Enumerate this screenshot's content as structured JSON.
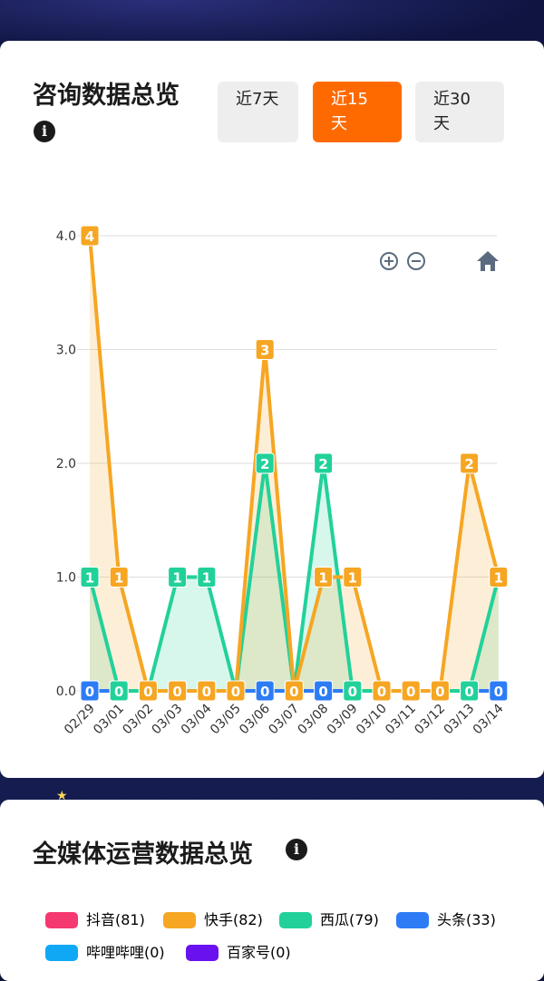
{
  "consult": {
    "title": "咨询数据总览",
    "info_icon": "info-icon",
    "ranges": [
      "近7天",
      "近15天",
      "近30天"
    ],
    "active_range": "近15天"
  },
  "toolbar": {
    "zoom_in": "zoom-in-icon",
    "zoom_out": "zoom-out-icon",
    "home": "home-icon"
  },
  "media": {
    "title": "全媒体运营数据总览",
    "info_icon": "info-icon",
    "legend": [
      {
        "label": "抖音(81)",
        "color": "#f5386f"
      },
      {
        "label": "快手(82)",
        "color": "#f6a623"
      },
      {
        "label": "西瓜(79)",
        "color": "#22d19a"
      },
      {
        "label": "头条(33)",
        "color": "#2d7cf6"
      },
      {
        "label": "哔哩哔哩(0)",
        "color": "#10a8f5"
      },
      {
        "label": "百家号(0)",
        "color": "#6a11f0"
      }
    ]
  },
  "chart_data": {
    "type": "area",
    "x": [
      "02/29",
      "03/01",
      "03/02",
      "03/03",
      "03/04",
      "03/05",
      "03/06",
      "03/07",
      "03/08",
      "03/09",
      "03/10",
      "03/11",
      "03/12",
      "03/13",
      "03/14"
    ],
    "ylim": [
      0,
      4
    ],
    "yticks": [
      "0.0",
      "1.0",
      "2.0",
      "3.0",
      "4.0"
    ],
    "grid": true,
    "series": [
      {
        "color": "#2d7cf6",
        "values": [
          0,
          0,
          0,
          0,
          0,
          0,
          0,
          0,
          0,
          0,
          0,
          0,
          0,
          0,
          0
        ]
      },
      {
        "color": "#22d19a",
        "values": [
          1,
          0,
          0,
          1,
          1,
          0,
          2,
          0,
          2,
          0,
          0,
          0,
          0,
          0,
          1
        ]
      },
      {
        "color": "#f6a623",
        "values": [
          4,
          1,
          0,
          0,
          0,
          0,
          3,
          0,
          1,
          1,
          0,
          0,
          0,
          2,
          1
        ]
      }
    ]
  }
}
